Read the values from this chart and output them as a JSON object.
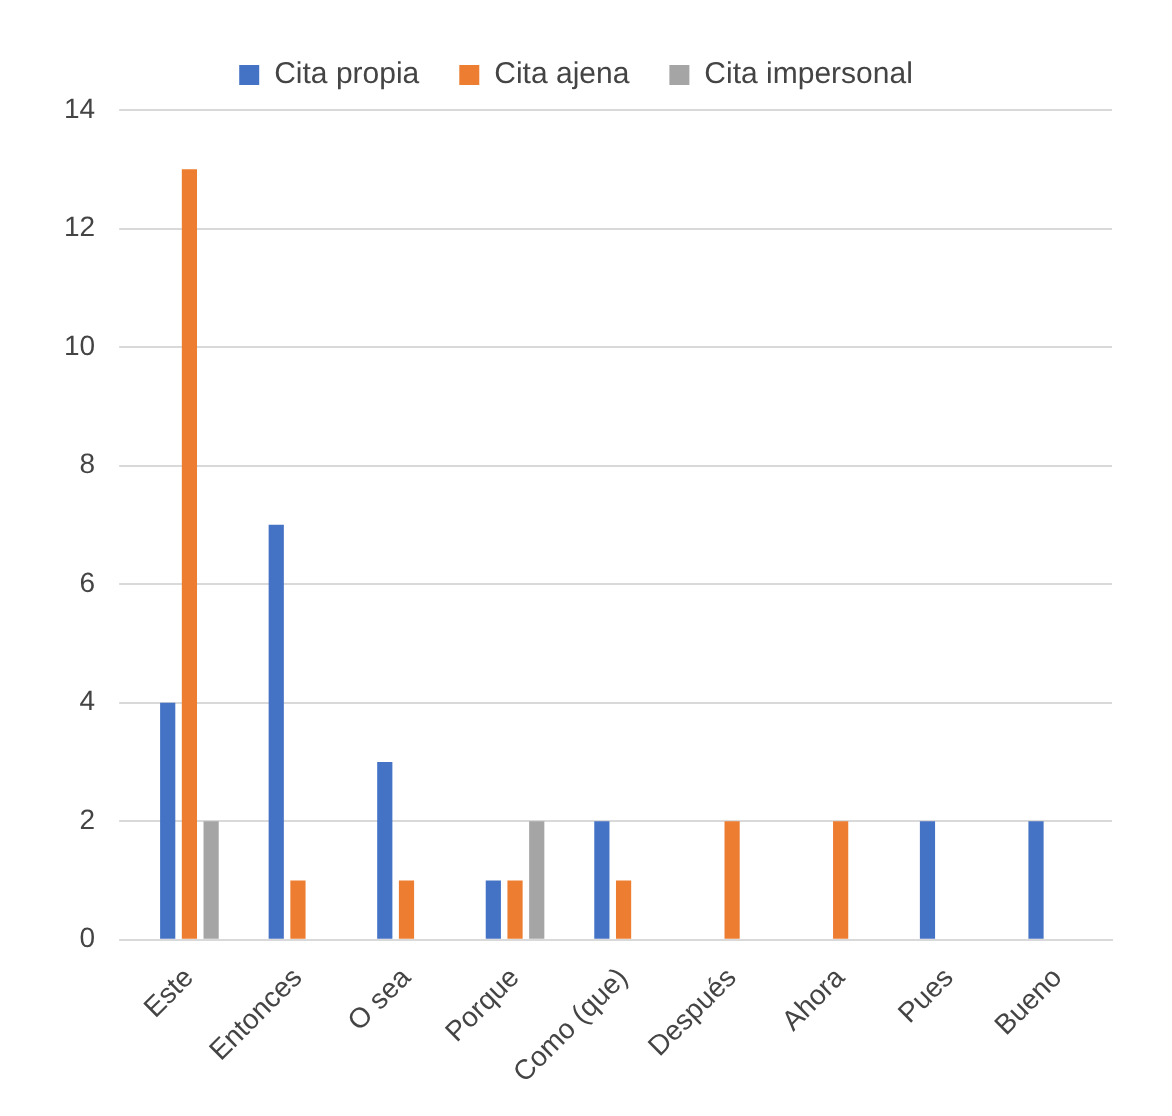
{
  "chart_data": {
    "type": "bar",
    "categories": [
      "Este",
      "Entonces",
      "O sea",
      "Porque",
      "Como (que)",
      "Después",
      "Ahora",
      "Pues",
      "Bueno"
    ],
    "series": [
      {
        "name": "Cita propia",
        "color": "#4472c4",
        "values": [
          4,
          7,
          3,
          1,
          2,
          0,
          0,
          2,
          2
        ]
      },
      {
        "name": "Cita ajena",
        "color": "#ed7d31",
        "values": [
          13,
          1,
          1,
          1,
          1,
          2,
          2,
          0,
          0
        ]
      },
      {
        "name": "Cita impersonal",
        "color": "#a5a5a5",
        "values": [
          2,
          0,
          0,
          2,
          0,
          0,
          0,
          0,
          0
        ]
      }
    ],
    "ylim": [
      0,
      14
    ],
    "yticks": [
      0,
      2,
      4,
      6,
      8,
      10,
      12,
      14
    ],
    "grid": "y",
    "legend": "top"
  }
}
